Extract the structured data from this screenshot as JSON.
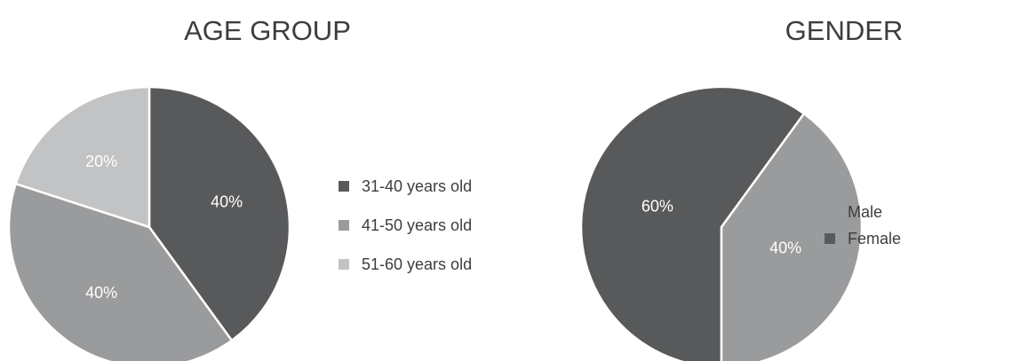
{
  "chart_data": [
    {
      "type": "pie",
      "title": "AGE GROUP",
      "slices": [
        {
          "label": "31-40 years old",
          "value": 40,
          "value_label": "40%",
          "color": "#58595b"
        },
        {
          "label": "41-50 years old",
          "value": 40,
          "value_label": "40%",
          "color": "#9a9b9d"
        },
        {
          "label": "51-60 years old",
          "value": 20,
          "value_label": "20%",
          "color": "#c2c3c5"
        }
      ],
      "start_angle_deg": 0,
      "direction": "clockwise",
      "legend_position": "right"
    },
    {
      "type": "pie",
      "title": "GENDER",
      "slices": [
        {
          "label": "Female",
          "value": 60,
          "value_label": "60%",
          "color": "#58595b"
        },
        {
          "label": "Male",
          "value": 40,
          "value_label": "40%",
          "color": "#9a9b9d"
        }
      ],
      "legend_order": [
        "Male",
        "Female"
      ],
      "start_angle_deg": 180,
      "direction": "clockwise",
      "legend_position": "right"
    }
  ]
}
